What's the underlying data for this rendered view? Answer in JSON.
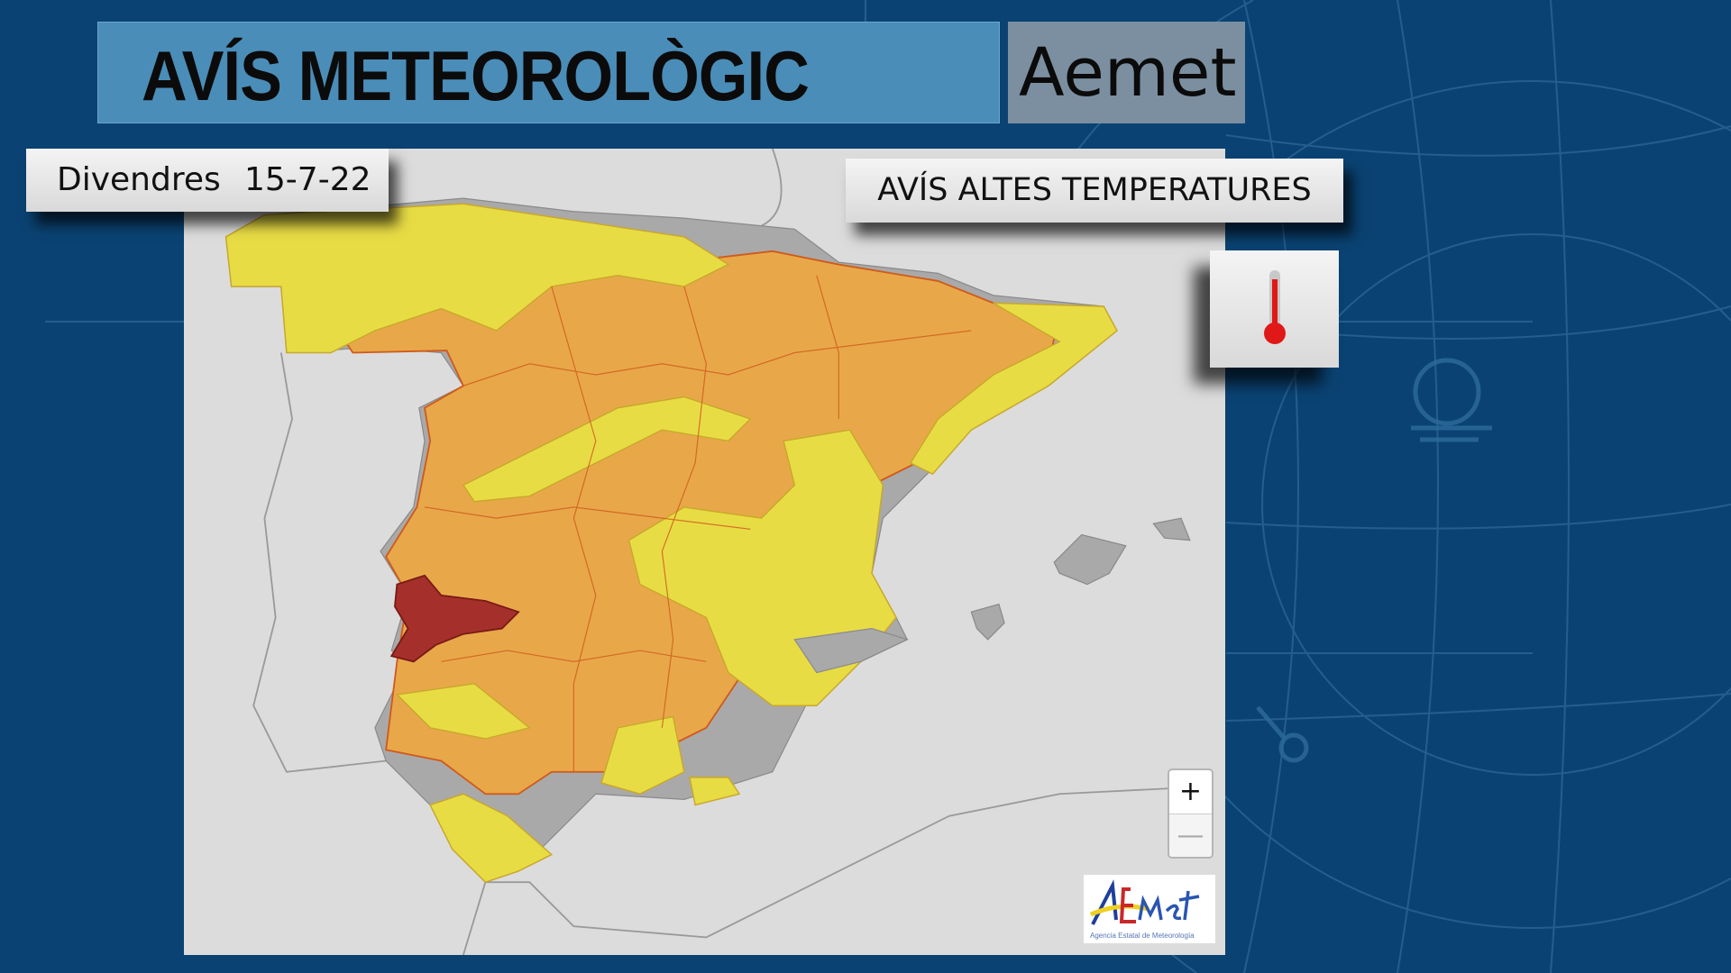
{
  "header": {
    "title": "AVÍS METEOROLÒGIC",
    "brand": "Aemet"
  },
  "date": {
    "day": "Divendres",
    "value": "15-7-22"
  },
  "warning": {
    "label": "AVÍS ALTES TEMPERATURES",
    "icon": "thermometer-icon"
  },
  "map": {
    "zoom_in": "+",
    "zoom_out": "—",
    "logo": {
      "name": "AEMet",
      "subtitle": "Agencia Estatal de Meteorología"
    },
    "legend_colors": {
      "yellow": "#e8dc45",
      "orange": "#e8a84a",
      "red": "#a5302b",
      "no_warning": "#a9a9a9"
    }
  },
  "colors": {
    "background": "#0a4373",
    "title_bar": "#4a8db8",
    "brand_box": "#7b8fa0"
  }
}
